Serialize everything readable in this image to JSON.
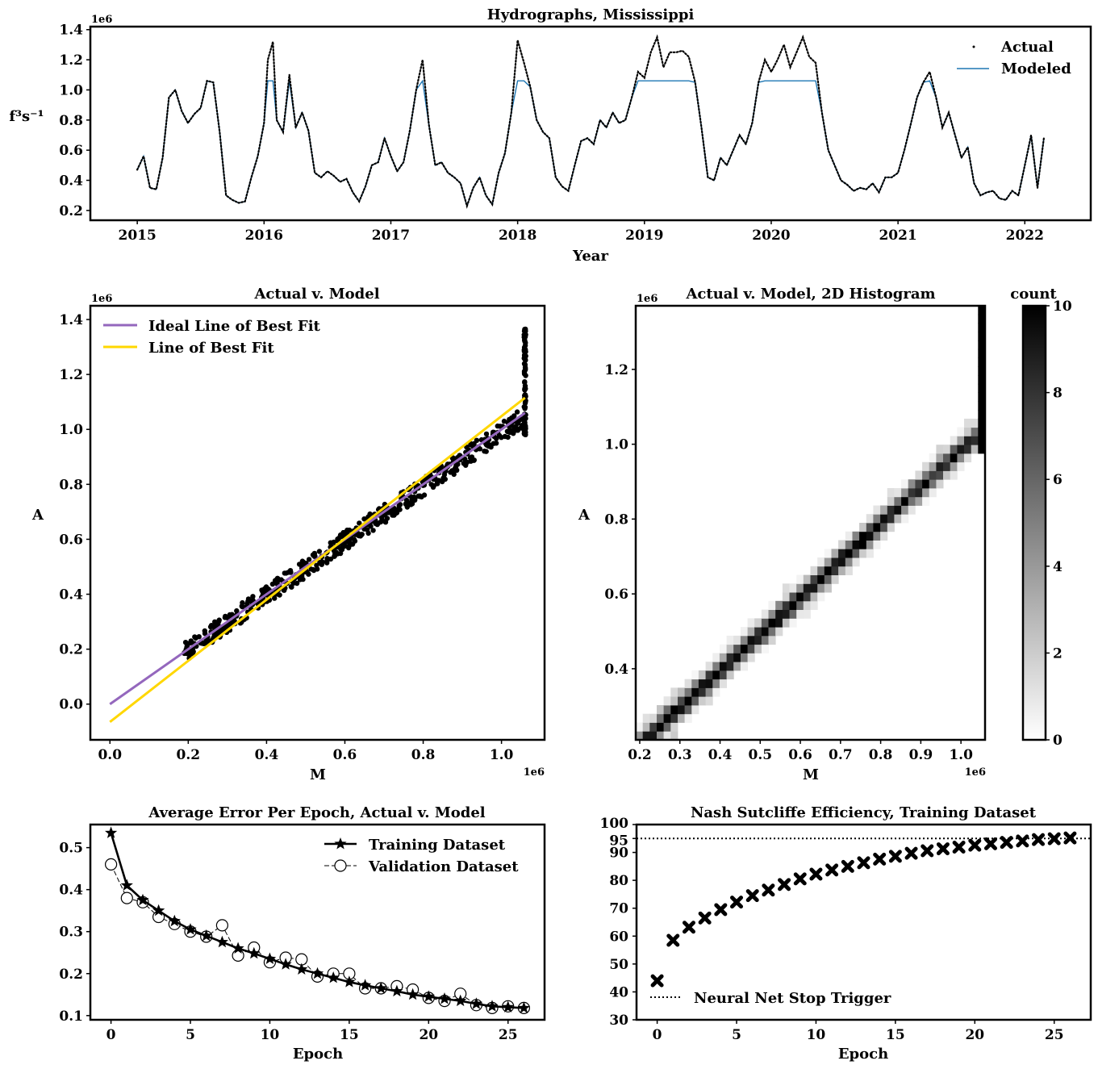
{
  "colors": {
    "actual": "#000000",
    "modeled": "#1f77b4",
    "ideal_fit": "#9467bd",
    "best_fit": "#ffd700",
    "training": "#000000",
    "stop_trigger": "#000000"
  },
  "chart_data": [
    {
      "id": "hydro",
      "type": "line",
      "title": "Hydrographs, Mississippi",
      "xlabel": "Year",
      "ylabel": "f³s⁻¹",
      "offset_label": "1e6",
      "xlim": [
        2014.63,
        2022.52
      ],
      "ylim": [
        0.135,
        1.42
      ],
      "grid": false,
      "legend_position": "top-right",
      "x_ticks": [
        "2015",
        "2016",
        "2017",
        "2018",
        "2019",
        "2020",
        "2021",
        "2022"
      ],
      "y_ticks": [
        "0.2",
        "0.4",
        "0.6",
        "0.8",
        "1.0",
        "1.2",
        "1.4"
      ],
      "cap": 1.06,
      "series": [
        {
          "name": "Actual",
          "style": "points"
        },
        {
          "name": "Modeled",
          "style": "line"
        }
      ],
      "x": [
        2015.0,
        2015.05,
        2015.1,
        2015.15,
        2015.2,
        2015.25,
        2015.3,
        2015.35,
        2015.4,
        2015.45,
        2015.5,
        2015.55,
        2015.6,
        2015.65,
        2015.7,
        2015.75,
        2015.8,
        2015.85,
        2015.9,
        2015.95,
        2016.0,
        2016.03,
        2016.07,
        2016.1,
        2016.15,
        2016.2,
        2016.25,
        2016.3,
        2016.35,
        2016.4,
        2016.45,
        2016.5,
        2016.55,
        2016.6,
        2016.65,
        2016.7,
        2016.75,
        2016.8,
        2016.85,
        2016.9,
        2016.95,
        2017.0,
        2017.05,
        2017.1,
        2017.15,
        2017.2,
        2017.25,
        2017.3,
        2017.35,
        2017.4,
        2017.45,
        2017.5,
        2017.55,
        2017.6,
        2017.65,
        2017.7,
        2017.75,
        2017.8,
        2017.85,
        2017.9,
        2017.95,
        2018.0,
        2018.05,
        2018.1,
        2018.15,
        2018.2,
        2018.25,
        2018.3,
        2018.35,
        2018.4,
        2018.45,
        2018.5,
        2018.55,
        2018.6,
        2018.65,
        2018.7,
        2018.75,
        2018.8,
        2018.85,
        2018.9,
        2018.95,
        2019.0,
        2019.05,
        2019.1,
        2019.15,
        2019.2,
        2019.25,
        2019.3,
        2019.35,
        2019.4,
        2019.45,
        2019.5,
        2019.55,
        2019.6,
        2019.65,
        2019.7,
        2019.75,
        2019.8,
        2019.85,
        2019.9,
        2019.95,
        2020.0,
        2020.05,
        2020.1,
        2020.15,
        2020.2,
        2020.25,
        2020.3,
        2020.35,
        2020.4,
        2020.45,
        2020.5,
        2020.55,
        2020.6,
        2020.65,
        2020.7,
        2020.75,
        2020.8,
        2020.85,
        2020.9,
        2020.95,
        2021.0,
        2021.05,
        2021.1,
        2021.15,
        2021.2,
        2021.25,
        2021.3,
        2021.35,
        2021.4,
        2021.45,
        2021.5,
        2021.55,
        2021.6,
        2021.65,
        2021.7,
        2021.75,
        2021.8,
        2021.85,
        2021.9,
        2021.95,
        2022.0,
        2022.05,
        2022.1,
        2022.15
      ],
      "actual": [
        0.47,
        0.56,
        0.35,
        0.34,
        0.55,
        0.95,
        1.0,
        0.86,
        0.78,
        0.84,
        0.88,
        1.06,
        1.05,
        0.72,
        0.3,
        0.27,
        0.25,
        0.26,
        0.42,
        0.56,
        0.78,
        1.2,
        1.32,
        0.8,
        0.72,
        1.1,
        0.75,
        0.85,
        0.73,
        0.45,
        0.42,
        0.46,
        0.43,
        0.39,
        0.41,
        0.32,
        0.26,
        0.36,
        0.5,
        0.52,
        0.68,
        0.56,
        0.46,
        0.52,
        0.73,
        1.0,
        1.2,
        0.77,
        0.5,
        0.52,
        0.45,
        0.42,
        0.38,
        0.23,
        0.35,
        0.42,
        0.3,
        0.24,
        0.45,
        0.58,
        0.85,
        1.33,
        1.18,
        1.02,
        0.8,
        0.72,
        0.68,
        0.42,
        0.36,
        0.33,
        0.5,
        0.66,
        0.68,
        0.64,
        0.8,
        0.75,
        0.85,
        0.78,
        0.8,
        0.95,
        1.12,
        1.08,
        1.25,
        1.35,
        1.15,
        1.25,
        1.25,
        1.26,
        1.22,
        1.05,
        0.75,
        0.42,
        0.4,
        0.55,
        0.5,
        0.6,
        0.7,
        0.64,
        0.78,
        1.05,
        1.2,
        1.12,
        1.2,
        1.3,
        1.15,
        1.25,
        1.35,
        1.22,
        1.18,
        0.85,
        0.6,
        0.5,
        0.4,
        0.37,
        0.33,
        0.35,
        0.34,
        0.38,
        0.32,
        0.42,
        0.42,
        0.45,
        0.6,
        0.77,
        0.95,
        1.05,
        1.12,
        0.95,
        0.75,
        0.85,
        0.7,
        0.55,
        0.62,
        0.38,
        0.3,
        0.32,
        0.33,
        0.28,
        0.27,
        0.33,
        0.3,
        0.5,
        0.7,
        0.35,
        0.68
      ],
      "modeled": [
        0.47,
        0.56,
        0.35,
        0.34,
        0.55,
        0.95,
        1.0,
        0.86,
        0.78,
        0.84,
        0.88,
        1.06,
        1.05,
        0.72,
        0.3,
        0.27,
        0.25,
        0.26,
        0.42,
        0.56,
        0.78,
        1.06,
        1.06,
        0.8,
        0.72,
        1.06,
        0.75,
        0.85,
        0.73,
        0.45,
        0.42,
        0.46,
        0.43,
        0.39,
        0.41,
        0.32,
        0.26,
        0.36,
        0.5,
        0.52,
        0.68,
        0.56,
        0.46,
        0.52,
        0.73,
        1.0,
        1.06,
        0.77,
        0.5,
        0.52,
        0.45,
        0.42,
        0.38,
        0.23,
        0.35,
        0.42,
        0.3,
        0.24,
        0.45,
        0.58,
        0.85,
        1.06,
        1.06,
        1.02,
        0.8,
        0.72,
        0.68,
        0.42,
        0.36,
        0.33,
        0.5,
        0.66,
        0.68,
        0.64,
        0.8,
        0.75,
        0.85,
        0.78,
        0.8,
        0.95,
        1.06,
        1.06,
        1.06,
        1.06,
        1.06,
        1.06,
        1.06,
        1.06,
        1.06,
        1.05,
        0.75,
        0.42,
        0.4,
        0.55,
        0.5,
        0.6,
        0.7,
        0.64,
        0.78,
        1.05,
        1.06,
        1.06,
        1.06,
        1.06,
        1.06,
        1.06,
        1.06,
        1.06,
        1.06,
        0.85,
        0.6,
        0.5,
        0.4,
        0.37,
        0.33,
        0.35,
        0.34,
        0.38,
        0.32,
        0.42,
        0.42,
        0.45,
        0.6,
        0.77,
        0.95,
        1.05,
        1.06,
        0.95,
        0.75,
        0.85,
        0.7,
        0.55,
        0.62,
        0.38,
        0.3,
        0.32,
        0.33,
        0.28,
        0.27,
        0.33,
        0.3,
        0.5,
        0.7,
        0.35,
        0.68
      ]
    },
    {
      "id": "scatter",
      "type": "scatter",
      "title": "Actual v. Model",
      "xlabel": "M",
      "ylabel": "A",
      "offset_label": "1e6",
      "xlim": [
        -0.05,
        1.11
      ],
      "ylim": [
        -0.13,
        1.45
      ],
      "x_ticks": [
        "0.0",
        "0.2",
        "0.4",
        "0.6",
        "0.8",
        "1.0"
      ],
      "y_ticks": [
        "0.0",
        "0.2",
        "0.4",
        "0.6",
        "0.8",
        "1.0",
        "1.2",
        "1.4"
      ],
      "legend_position": "top-left",
      "lines": [
        {
          "name": "Ideal Line of Best Fit",
          "x": [
            0.0,
            1.06
          ],
          "y": [
            0.0,
            1.06
          ]
        },
        {
          "name": "Line of Best Fit",
          "x": [
            0.0,
            1.06
          ],
          "y": [
            -0.065,
            1.115
          ]
        }
      ],
      "points_range": {
        "x": [
          0.19,
          1.06
        ],
        "y": [
          0.2,
          1.37
        ]
      }
    },
    {
      "id": "hist2d",
      "type": "heatmap",
      "title": "Actual v. Model, 2D Histogram",
      "xlabel": "M",
      "ylabel": "A",
      "offset_label": "1e6",
      "xlim": [
        0.19,
        1.06
      ],
      "ylim": [
        0.21,
        1.37
      ],
      "x_ticks": [
        "0.2",
        "0.3",
        "0.4",
        "0.5",
        "0.6",
        "0.7",
        "0.8",
        "0.9",
        "1.0"
      ],
      "y_ticks": [
        "0.4",
        "0.6",
        "0.8",
        "1.0",
        "1.2"
      ],
      "colorbar_label": "count",
      "colorbar_ticks": [
        "0",
        "2",
        "4",
        "6",
        "8",
        "10"
      ],
      "colorbar_range": [
        0,
        10
      ]
    },
    {
      "id": "err",
      "type": "line",
      "title": "Average Error Per Epoch, Actual v. Model",
      "xlabel": "Epoch",
      "ylabel": "",
      "xlim": [
        -1.3,
        27.3
      ],
      "ylim": [
        0.09,
        0.555
      ],
      "x_ticks": [
        "0",
        "5",
        "10",
        "15",
        "20",
        "25"
      ],
      "y_ticks": [
        "0.1",
        "0.2",
        "0.3",
        "0.4",
        "0.5"
      ],
      "legend_position": "top-right",
      "x": [
        0,
        1,
        2,
        3,
        4,
        5,
        6,
        7,
        8,
        9,
        10,
        11,
        12,
        13,
        14,
        15,
        16,
        17,
        18,
        19,
        20,
        21,
        22,
        23,
        24,
        25,
        26
      ],
      "series": [
        {
          "name": "Training Dataset",
          "values": [
            0.535,
            0.41,
            0.375,
            0.35,
            0.325,
            0.305,
            0.29,
            0.275,
            0.26,
            0.248,
            0.235,
            0.222,
            0.21,
            0.2,
            0.19,
            0.18,
            0.172,
            0.165,
            0.158,
            0.15,
            0.145,
            0.14,
            0.135,
            0.128,
            0.122,
            0.12,
            0.118
          ]
        },
        {
          "name": "Validation Dataset",
          "values": [
            0.46,
            0.38,
            0.37,
            0.335,
            0.318,
            0.3,
            0.288,
            0.315,
            0.243,
            0.262,
            0.227,
            0.238,
            0.234,
            0.193,
            0.2,
            0.2,
            0.165,
            0.165,
            0.17,
            0.162,
            0.142,
            0.135,
            0.152,
            0.125,
            0.118,
            0.122,
            0.118
          ]
        }
      ]
    },
    {
      "id": "nse",
      "type": "scatter",
      "title": "Nash Sutcliffe Efficiency, Training Dataset",
      "xlabel": "Epoch",
      "ylabel": "",
      "xlim": [
        -1.3,
        27.3
      ],
      "ylim": [
        30,
        100
      ],
      "x_ticks": [
        "0",
        "5",
        "10",
        "15",
        "20",
        "25"
      ],
      "y_ticks": [
        "30",
        "40",
        "50",
        "60",
        "70",
        "80",
        "90",
        "95",
        "100"
      ],
      "stop_trigger": 95,
      "legend_position": "bottom-left",
      "legend": [
        "Neural Net Stop Trigger"
      ],
      "x": [
        0,
        1,
        2,
        3,
        4,
        5,
        6,
        7,
        8,
        9,
        10,
        11,
        12,
        13,
        14,
        15,
        16,
        17,
        18,
        19,
        20,
        21,
        22,
        23,
        24,
        25,
        26
      ],
      "values": [
        44,
        58.5,
        63.2,
        66.5,
        69.5,
        72.2,
        74.5,
        76.5,
        78.5,
        80.5,
        82.2,
        83.7,
        85,
        86.3,
        87.6,
        88.6,
        89.7,
        90.6,
        91.3,
        91.9,
        92.6,
        93.1,
        93.6,
        94.1,
        94.6,
        94.9,
        95.2
      ]
    }
  ]
}
